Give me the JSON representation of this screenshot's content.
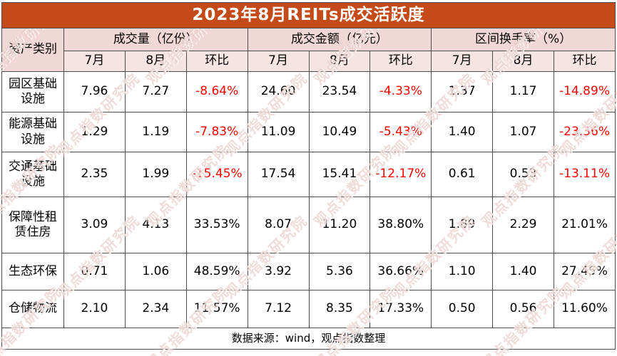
{
  "title": "2023年8月REITs成交活跃度",
  "table": {
    "corner_header": "资产类别",
    "groups": [
      {
        "label": "成交量（亿份）"
      },
      {
        "label": "成交金额（亿元）"
      },
      {
        "label": "区间换手率（%）"
      }
    ],
    "sub_headers": [
      "7月",
      "8月",
      "环比"
    ],
    "rows": [
      {
        "label": "园区基础设施",
        "values": [
          "7.96",
          "7.27",
          "-8.64%",
          "24.60",
          "23.54",
          "-4.33%",
          "1.37",
          "1.17",
          "-14.89%"
        ]
      },
      {
        "label": "能源基础设施",
        "values": [
          "1.29",
          "1.19",
          "-7.83%",
          "11.09",
          "10.49",
          "-5.43%",
          "1.40",
          "1.07",
          "-23.36%"
        ]
      },
      {
        "label": "交通基础设施",
        "values": [
          "2.35",
          "1.99",
          "-15.45%",
          "17.54",
          "15.41",
          "-12.17%",
          "0.61",
          "0.53",
          "-13.11%"
        ]
      },
      {
        "label": "保障性租赁住房",
        "values": [
          "3.09",
          "4.13",
          "33.53%",
          "8.07",
          "11.20",
          "38.80%",
          "1.89",
          "2.29",
          "21.01%"
        ]
      },
      {
        "label": "生态环保",
        "values": [
          "0.71",
          "1.06",
          "48.59%",
          "3.92",
          "5.36",
          "36.66%",
          "1.10",
          "1.40",
          "27.45%"
        ]
      },
      {
        "label": "仓储物流",
        "values": [
          "2.10",
          "2.34",
          "11.57%",
          "7.12",
          "8.35",
          "17.33%",
          "0.50",
          "0.56",
          "11.60%"
        ]
      }
    ],
    "footer": "数据来源：wind，观点指数整理"
  },
  "watermark": {
    "text": "观点指数研究院"
  },
  "colors": {
    "title_bg": "#C54A19",
    "title_text": "#FFFFFF",
    "group_header_bg": "#F1D7D5",
    "sub_header_bg": "#F5E4E2",
    "negative_text": "#FF0000",
    "body_text": "#000000",
    "border": "#4D4D4D",
    "watermark": "#E2C0B9"
  },
  "chart_data": {
    "type": "table",
    "title": "2023年8月REITs成交活跃度",
    "row_header": "资产类别",
    "column_groups": [
      "成交量（亿份）",
      "成交金额（亿元）",
      "区间换手率（%）"
    ],
    "columns_per_group": [
      "7月",
      "8月",
      "环比"
    ],
    "categories": [
      "园区基础设施",
      "能源基础设施",
      "交通基础设施",
      "保障性租赁住房",
      "生态环保",
      "仓储物流"
    ],
    "series": [
      {
        "name": "成交量7月(亿份)",
        "values": [
          7.96,
          1.29,
          2.35,
          3.09,
          0.71,
          2.1
        ]
      },
      {
        "name": "成交量8月(亿份)",
        "values": [
          7.27,
          1.19,
          1.99,
          4.13,
          1.06,
          2.34
        ]
      },
      {
        "name": "成交量环比(%)",
        "values": [
          -8.64,
          -7.83,
          -15.45,
          33.53,
          48.59,
          11.57
        ]
      },
      {
        "name": "成交金额7月(亿元)",
        "values": [
          24.6,
          11.09,
          17.54,
          8.07,
          3.92,
          7.12
        ]
      },
      {
        "name": "成交金额8月(亿元)",
        "values": [
          23.54,
          10.49,
          15.41,
          11.2,
          5.36,
          8.35
        ]
      },
      {
        "name": "成交金额环比(%)",
        "values": [
          -4.33,
          -5.43,
          -12.17,
          38.8,
          36.66,
          17.33
        ]
      },
      {
        "name": "区间换手率7月(%)",
        "values": [
          1.37,
          1.4,
          0.61,
          1.89,
          1.1,
          0.5
        ]
      },
      {
        "name": "区间换手率8月(%)",
        "values": [
          1.17,
          1.07,
          0.53,
          2.29,
          1.4,
          0.56
        ]
      },
      {
        "name": "区间换手率环比(%)",
        "values": [
          -14.89,
          -23.36,
          -13.11,
          21.01,
          27.45,
          11.6
        ]
      }
    ],
    "source_note": "数据来源：wind，观点指数整理"
  }
}
